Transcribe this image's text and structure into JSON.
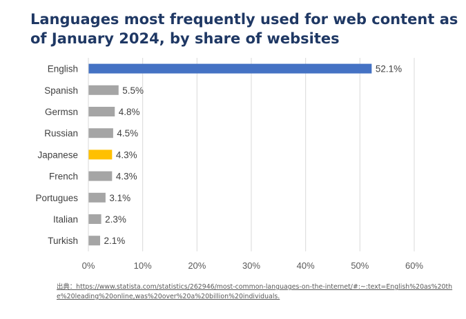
{
  "chart_data": {
    "type": "bar",
    "orientation": "horizontal",
    "title": "Languages most frequently used for web content as of January 2024, by share of websites",
    "categories": [
      "English",
      "Spanish",
      "Germsn",
      "Russian",
      "Japanese",
      "French",
      "Portugues",
      "Italian",
      "Turkish"
    ],
    "values": [
      52.1,
      5.5,
      4.8,
      4.5,
      4.3,
      4.3,
      3.1,
      2.3,
      2.1
    ],
    "value_labels": [
      "52.1%",
      "5.5%",
      "4.8%",
      "4.5%",
      "4.3%",
      "4.3%",
      "3.1%",
      "2.3%",
      "2.1%"
    ],
    "bar_colors": [
      "#4472c4",
      "#a5a5a5",
      "#a5a5a5",
      "#a5a5a5",
      "#ffc000",
      "#a5a5a5",
      "#a5a5a5",
      "#a5a5a5",
      "#a5a5a5"
    ],
    "xlim": [
      0,
      60
    ],
    "xticks": [
      0,
      10,
      20,
      30,
      40,
      50,
      60
    ],
    "xtick_labels": [
      "0%",
      "10%",
      "20%",
      "30%",
      "40%",
      "50%",
      "60%"
    ],
    "xlabel": "",
    "ylabel": "",
    "grid": "vertical",
    "legend": "none"
  },
  "source": "出典：https://www.statista.com/statistics/262946/most-common-languages-on-the-internet/#:~:text=English%20as%20the%20leading%20online,was%20over%20a%20billion%20individuals."
}
